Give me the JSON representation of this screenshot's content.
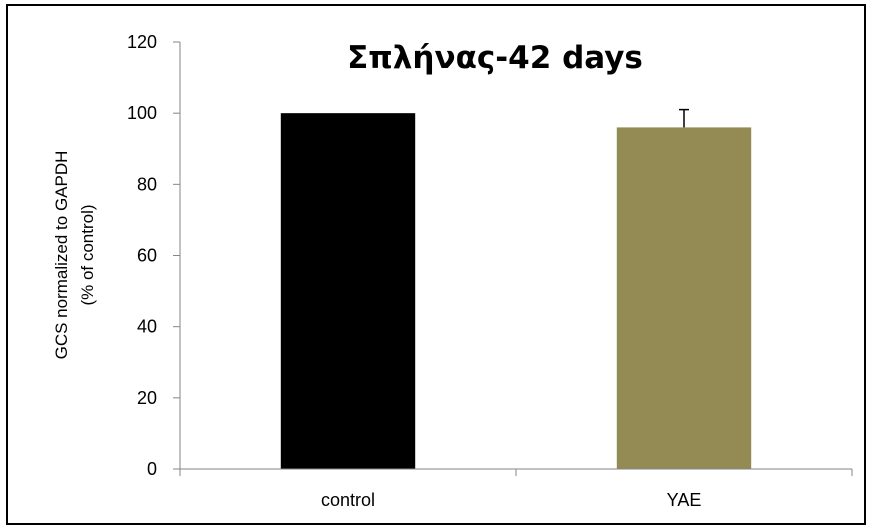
{
  "chart_data": {
    "type": "bar",
    "title": "Σπλήνας-42 days",
    "xlabel": "",
    "ylabel": "GCS normalized to GAPDH",
    "ylabel_line2": "(% of control)",
    "categories": [
      "control",
      "YAE"
    ],
    "values": [
      100,
      96
    ],
    "error_bars": [
      0.3,
      5
    ],
    "ylim": [
      0,
      120
    ],
    "yticks": [
      0,
      20,
      40,
      60,
      80,
      100,
      120
    ],
    "bar_colors": [
      "#000000",
      "#948A54"
    ],
    "grid": false,
    "legend": "none"
  }
}
